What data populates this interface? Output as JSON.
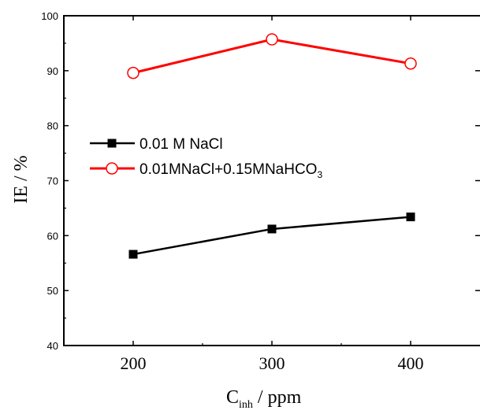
{
  "chart_data": {
    "type": "line",
    "xlabel": {
      "main": "C",
      "sub": "inh",
      "rest": " / ppm"
    },
    "ylabel": "IE / %",
    "x": [
      200,
      300,
      400
    ],
    "xlim": [
      150,
      450
    ],
    "ylim": [
      40,
      100
    ],
    "x_ticks": [
      "200",
      "300",
      "400"
    ],
    "y_ticks": [
      "40",
      "50",
      "60",
      "70",
      "80",
      "90",
      "100"
    ],
    "grid": false,
    "legend_position": "middle-left",
    "series": [
      {
        "name": "0.01 M NaCl",
        "name_parts": {
          "main": "0.01 M NaCl",
          "sub": ""
        },
        "values": [
          56.6,
          61.2,
          63.4
        ],
        "color": "#000000",
        "marker": "filled-square"
      },
      {
        "name": "0.01MNaCl+0.15MNaHCO3",
        "name_parts": {
          "main": "0.01MNaCl+0.15MNaHCO",
          "sub": "3"
        },
        "values": [
          89.6,
          95.7,
          91.3
        ],
        "color": "#ff0000",
        "marker": "open-circle"
      }
    ]
  }
}
